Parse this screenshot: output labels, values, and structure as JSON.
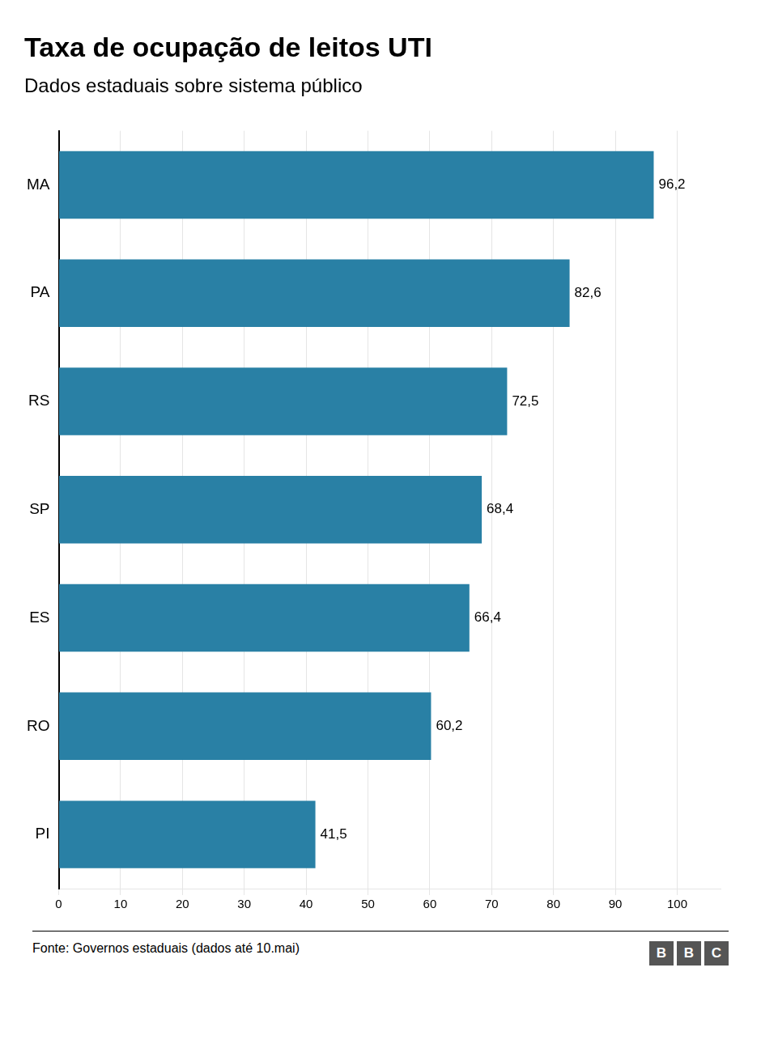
{
  "chart_data": {
    "type": "bar",
    "orientation": "horizontal",
    "title": "Taxa de ocupação de leitos UTI",
    "subtitle": "Dados estaduais sobre sistema público",
    "footer": "Fonte: Governos estaduais (dados até 10.mai)",
    "logo": "BBC",
    "categories": [
      "MA",
      "PA",
      "RS",
      "SP",
      "ES",
      "RO",
      "PI"
    ],
    "values": [
      96.2,
      82.6,
      72.5,
      68.4,
      66.4,
      60.2,
      41.5
    ],
    "value_labels": [
      "96,2",
      "82,6",
      "72,5",
      "68,4",
      "66,4",
      "60,2",
      "41,5"
    ],
    "color": "#2980a5",
    "xlim": [
      0,
      107
    ],
    "xticks": [
      0,
      10,
      20,
      30,
      40,
      50,
      60,
      70,
      80,
      90,
      100
    ],
    "grid": true,
    "data_labels": true
  }
}
